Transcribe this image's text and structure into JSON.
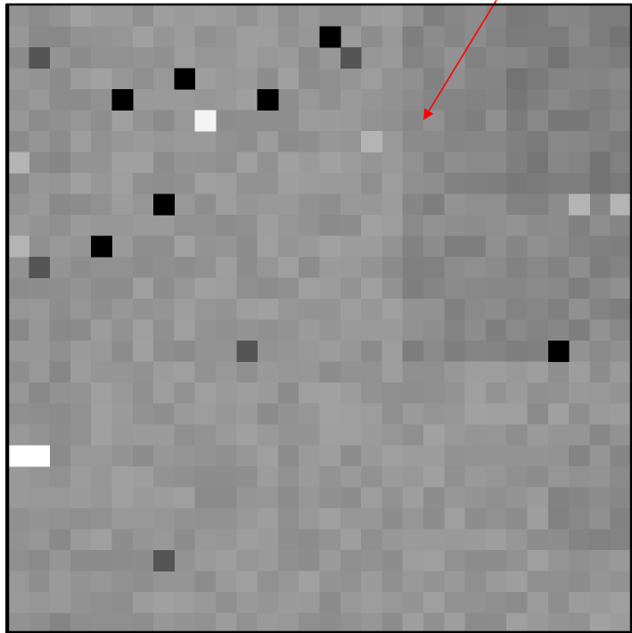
{
  "image": {
    "description": "pixelated-grayscale-noise-map",
    "base_gray": "#959595",
    "border_color": "#000000",
    "arrow_color": "#ff0000",
    "pixel_colors": {
      "black": "#000000",
      "dark": "#555555",
      "light": "#b4b4b4",
      "white": "#f4f4f4",
      "pure_white": "#ffffff"
    },
    "special_pixels": [
      {
        "kind": "black",
        "col": 15,
        "row": 1
      },
      {
        "kind": "dark",
        "col": 1,
        "row": 2
      },
      {
        "kind": "dark",
        "col": 16,
        "row": 2
      },
      {
        "kind": "black",
        "col": 8,
        "row": 3
      },
      {
        "kind": "black",
        "col": 5,
        "row": 4
      },
      {
        "kind": "black",
        "col": 12,
        "row": 4
      },
      {
        "kind": "white",
        "col": 9,
        "row": 5
      },
      {
        "kind": "light",
        "col": 17,
        "row": 6
      },
      {
        "kind": "light",
        "col": 0,
        "row": 7
      },
      {
        "kind": "black",
        "col": 7,
        "row": 9
      },
      {
        "kind": "light",
        "col": 27,
        "row": 9
      },
      {
        "kind": "light",
        "col": 29,
        "row": 9
      },
      {
        "kind": "black",
        "col": 4,
        "row": 11
      },
      {
        "kind": "light",
        "col": 0,
        "row": 11
      },
      {
        "kind": "dark",
        "col": 1,
        "row": 12
      },
      {
        "kind": "dark",
        "col": 11,
        "row": 16
      },
      {
        "kind": "black",
        "col": 26,
        "row": 16
      },
      {
        "kind": "pure_white",
        "col": 0,
        "row": 21
      },
      {
        "kind": "pure_white",
        "col": 1,
        "row": 21
      },
      {
        "kind": "dark",
        "col": 7,
        "row": 26
      }
    ]
  }
}
